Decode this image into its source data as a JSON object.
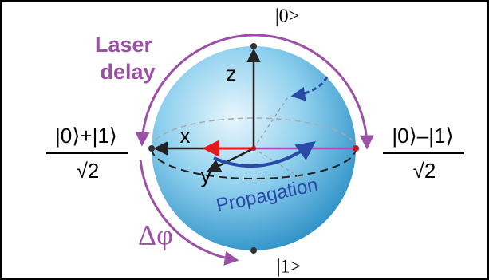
{
  "diagram": {
    "top_state": "|0>",
    "bottom_state": "|1>",
    "laser_delay": [
      "Laser",
      "delay"
    ],
    "axes": {
      "z": "z",
      "x": "x",
      "y": "y"
    },
    "left_state": {
      "numerator": "|0⟩+|1⟩",
      "denominator": "√2"
    },
    "right_state": {
      "numerator": "|0⟩–|1⟩",
      "denominator": "√2"
    },
    "propagation": "Propagation",
    "phase": "Δφ"
  }
}
